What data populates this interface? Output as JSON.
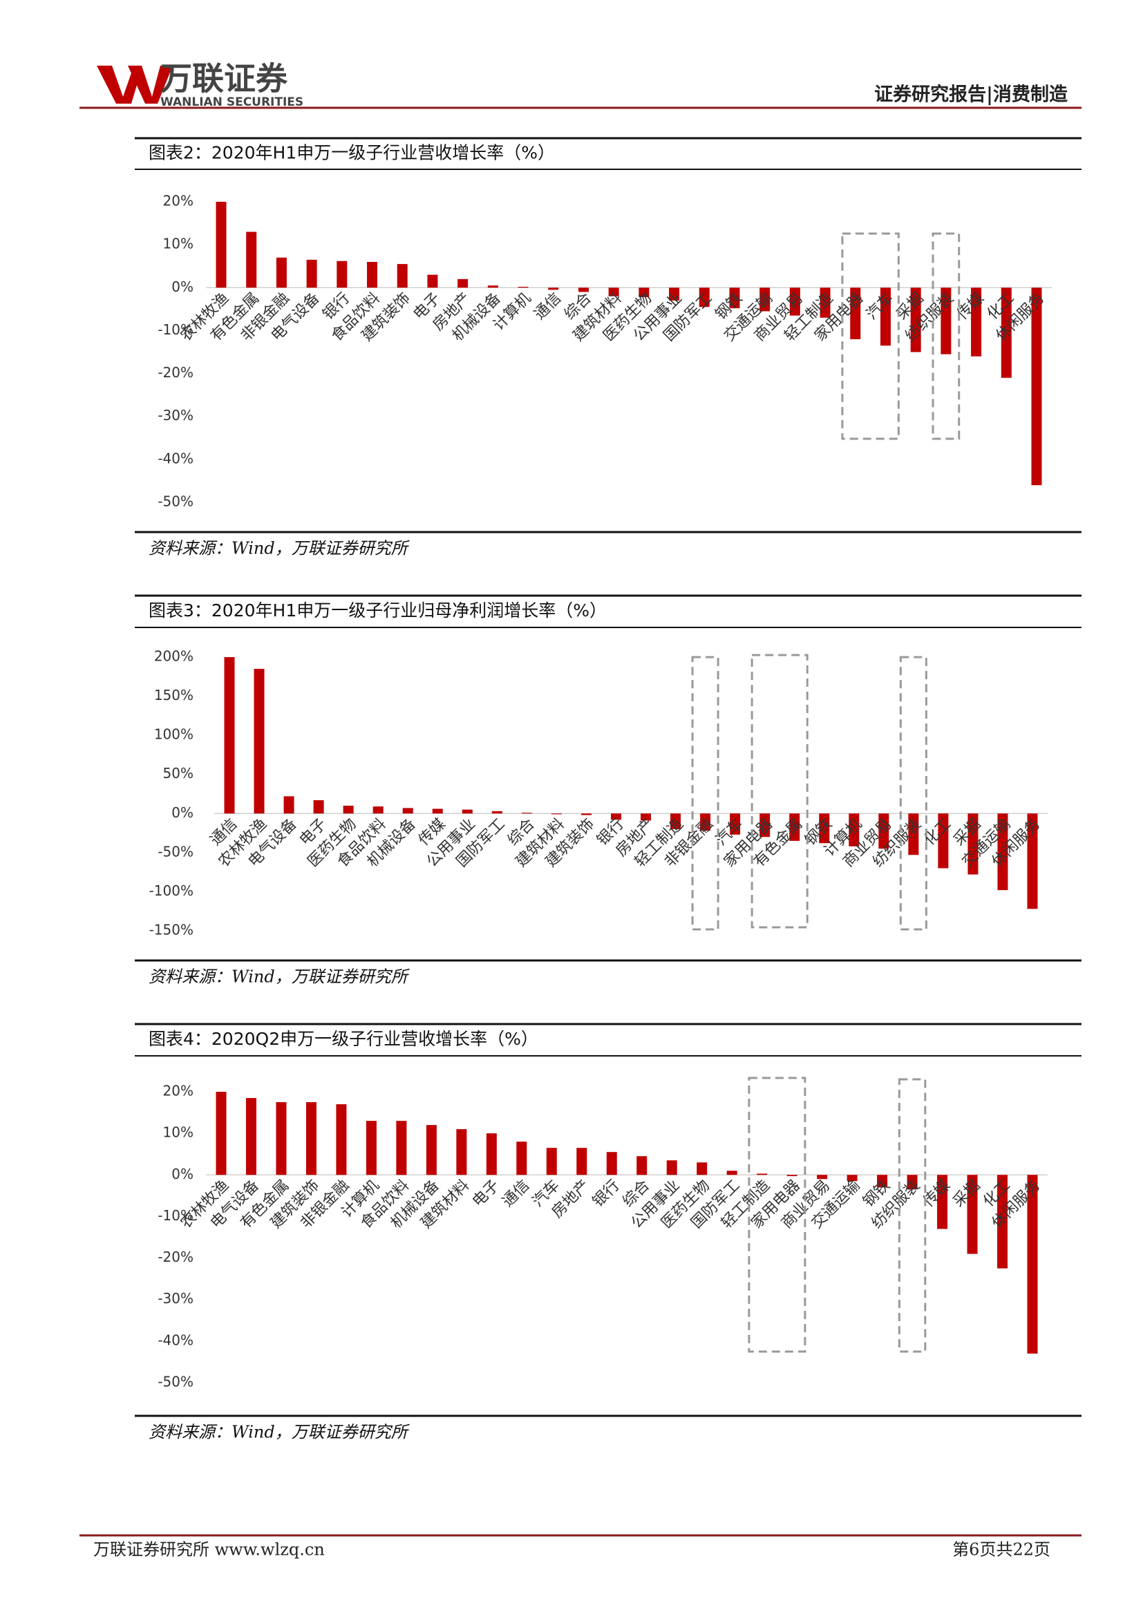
{
  "header": {
    "brand": "万联证券",
    "brand_en": "WANLIAN SECURITIES",
    "report": "证券研究报告|消费制造"
  },
  "chart_data": [
    {
      "type": "bar",
      "title": "图表2：2020年H1申万一级子行业营收增长率（%）",
      "source": "资料来源：Wind，万联证券研究所",
      "color": "#c00000",
      "categories": [
        "农林牧渔",
        "有色金属",
        "非银金融",
        "电气设备",
        "银行",
        "食品饮料",
        "建筑装饰",
        "电子",
        "房地产",
        "机械设备",
        "计算机",
        "通信",
        "综合",
        "建筑材料",
        "医药生物",
        "公用事业",
        "国防军工",
        "钢铁",
        "交通运输",
        "商业贸易",
        "轻工制造",
        "家用电器",
        "汽车",
        "采掘",
        "纺织服装",
        "传媒",
        "化工",
        "休闲服务"
      ],
      "values": [
        20,
        13,
        7,
        6.5,
        6.2,
        6,
        5.5,
        3,
        2,
        0.5,
        0.2,
        -0.5,
        -1,
        -2,
        -2.2,
        -3,
        -4.5,
        -4.8,
        -5.5,
        -6.5,
        -7,
        -12,
        -13.5,
        -15,
        -15.5,
        -16,
        -21,
        -46
      ],
      "ylim": [
        -50,
        20
      ],
      "yticks": [
        {
          "value": -50,
          "label": "-50%"
        },
        {
          "value": -40,
          "label": "-40%"
        },
        {
          "value": -30,
          "label": "-30%"
        },
        {
          "value": -20,
          "label": "-20%"
        },
        {
          "value": -10,
          "label": "-10%"
        },
        {
          "value": 0,
          "label": "0%"
        },
        {
          "value": 10,
          "label": "10%"
        },
        {
          "value": 20,
          "label": "20%"
        }
      ]
    },
    {
      "type": "bar",
      "title": "图表3：2020年H1申万一级子行业归母净利润增长率（%）",
      "source": "资料来源：Wind，万联证券研究所",
      "color": "#c00000",
      "categories": [
        "通信",
        "农林牧渔",
        "电气设备",
        "电子",
        "医药生物",
        "食品饮料",
        "机械设备",
        "传媒",
        "公用事业",
        "国防军工",
        "综合",
        "建筑材料",
        "建筑装饰",
        "银行",
        "房地产",
        "轻工制造",
        "非银金融",
        "汽车",
        "家用电器",
        "有色金属",
        "钢铁",
        "计算机",
        "商业贸易",
        "纺织服装",
        "化工",
        "采掘",
        "交通运输",
        "休闲服务"
      ],
      "values": [
        200,
        185,
        22,
        17,
        10,
        9,
        7,
        6,
        5,
        3,
        1,
        -1,
        -2,
        -8,
        -9,
        -20,
        -22,
        -27,
        -30,
        -35,
        -38,
        -42,
        -45,
        -53,
        -70,
        -78,
        -98,
        -122
      ],
      "ylim": [
        -150,
        200
      ],
      "yticks": [
        {
          "value": -150,
          "label": "-150%"
        },
        {
          "value": -100,
          "label": "-100%"
        },
        {
          "value": -50,
          "label": "-50%"
        },
        {
          "value": 0,
          "label": "0%"
        },
        {
          "value": 50,
          "label": "50%"
        },
        {
          "value": 100,
          "label": "100%"
        },
        {
          "value": 150,
          "label": "150%"
        },
        {
          "value": 200,
          "label": "200%"
        }
      ]
    },
    {
      "type": "bar",
      "title": "图表4：2020Q2申万一级子行业营收增长率（%）",
      "source": "资料来源：Wind，万联证券研究所",
      "color": "#c00000",
      "categories": [
        "农林牧渔",
        "电气设备",
        "有色金属",
        "建筑装饰",
        "非银金融",
        "计算机",
        "食品饮料",
        "机械设备",
        "建筑材料",
        "电子",
        "通信",
        "汽车",
        "房地产",
        "银行",
        "综合",
        "公用事业",
        "医药生物",
        "国防军工",
        "轻工制造",
        "家用电器",
        "商业贸易",
        "交通运输",
        "钢铁",
        "纺织服装",
        "传媒",
        "采掘",
        "化工",
        "休闲服务"
      ],
      "values": [
        20,
        18.5,
        17.5,
        17.5,
        17,
        13,
        13,
        12,
        11,
        10,
        8,
        6.5,
        6.5,
        5.5,
        4.5,
        3.5,
        3,
        1,
        0.3,
        -0.3,
        -1,
        -1.5,
        -3,
        -3.5,
        -13,
        -19,
        -22.5,
        -43
      ],
      "ylim": [
        -50,
        20
      ],
      "yticks": [
        {
          "value": -50,
          "label": "-50%"
        },
        {
          "value": -40,
          "label": "-40%"
        },
        {
          "value": -30,
          "label": "-30%"
        },
        {
          "value": -20,
          "label": "-20%"
        },
        {
          "value": -10,
          "label": "-10%"
        },
        {
          "value": 0,
          "label": "0%"
        },
        {
          "value": 10,
          "label": "10%"
        },
        {
          "value": 20,
          "label": "20%"
        }
      ]
    }
  ],
  "footer": {
    "left": "万联证券研究所 www.wlzq.cn",
    "right": "第6页共22页"
  }
}
